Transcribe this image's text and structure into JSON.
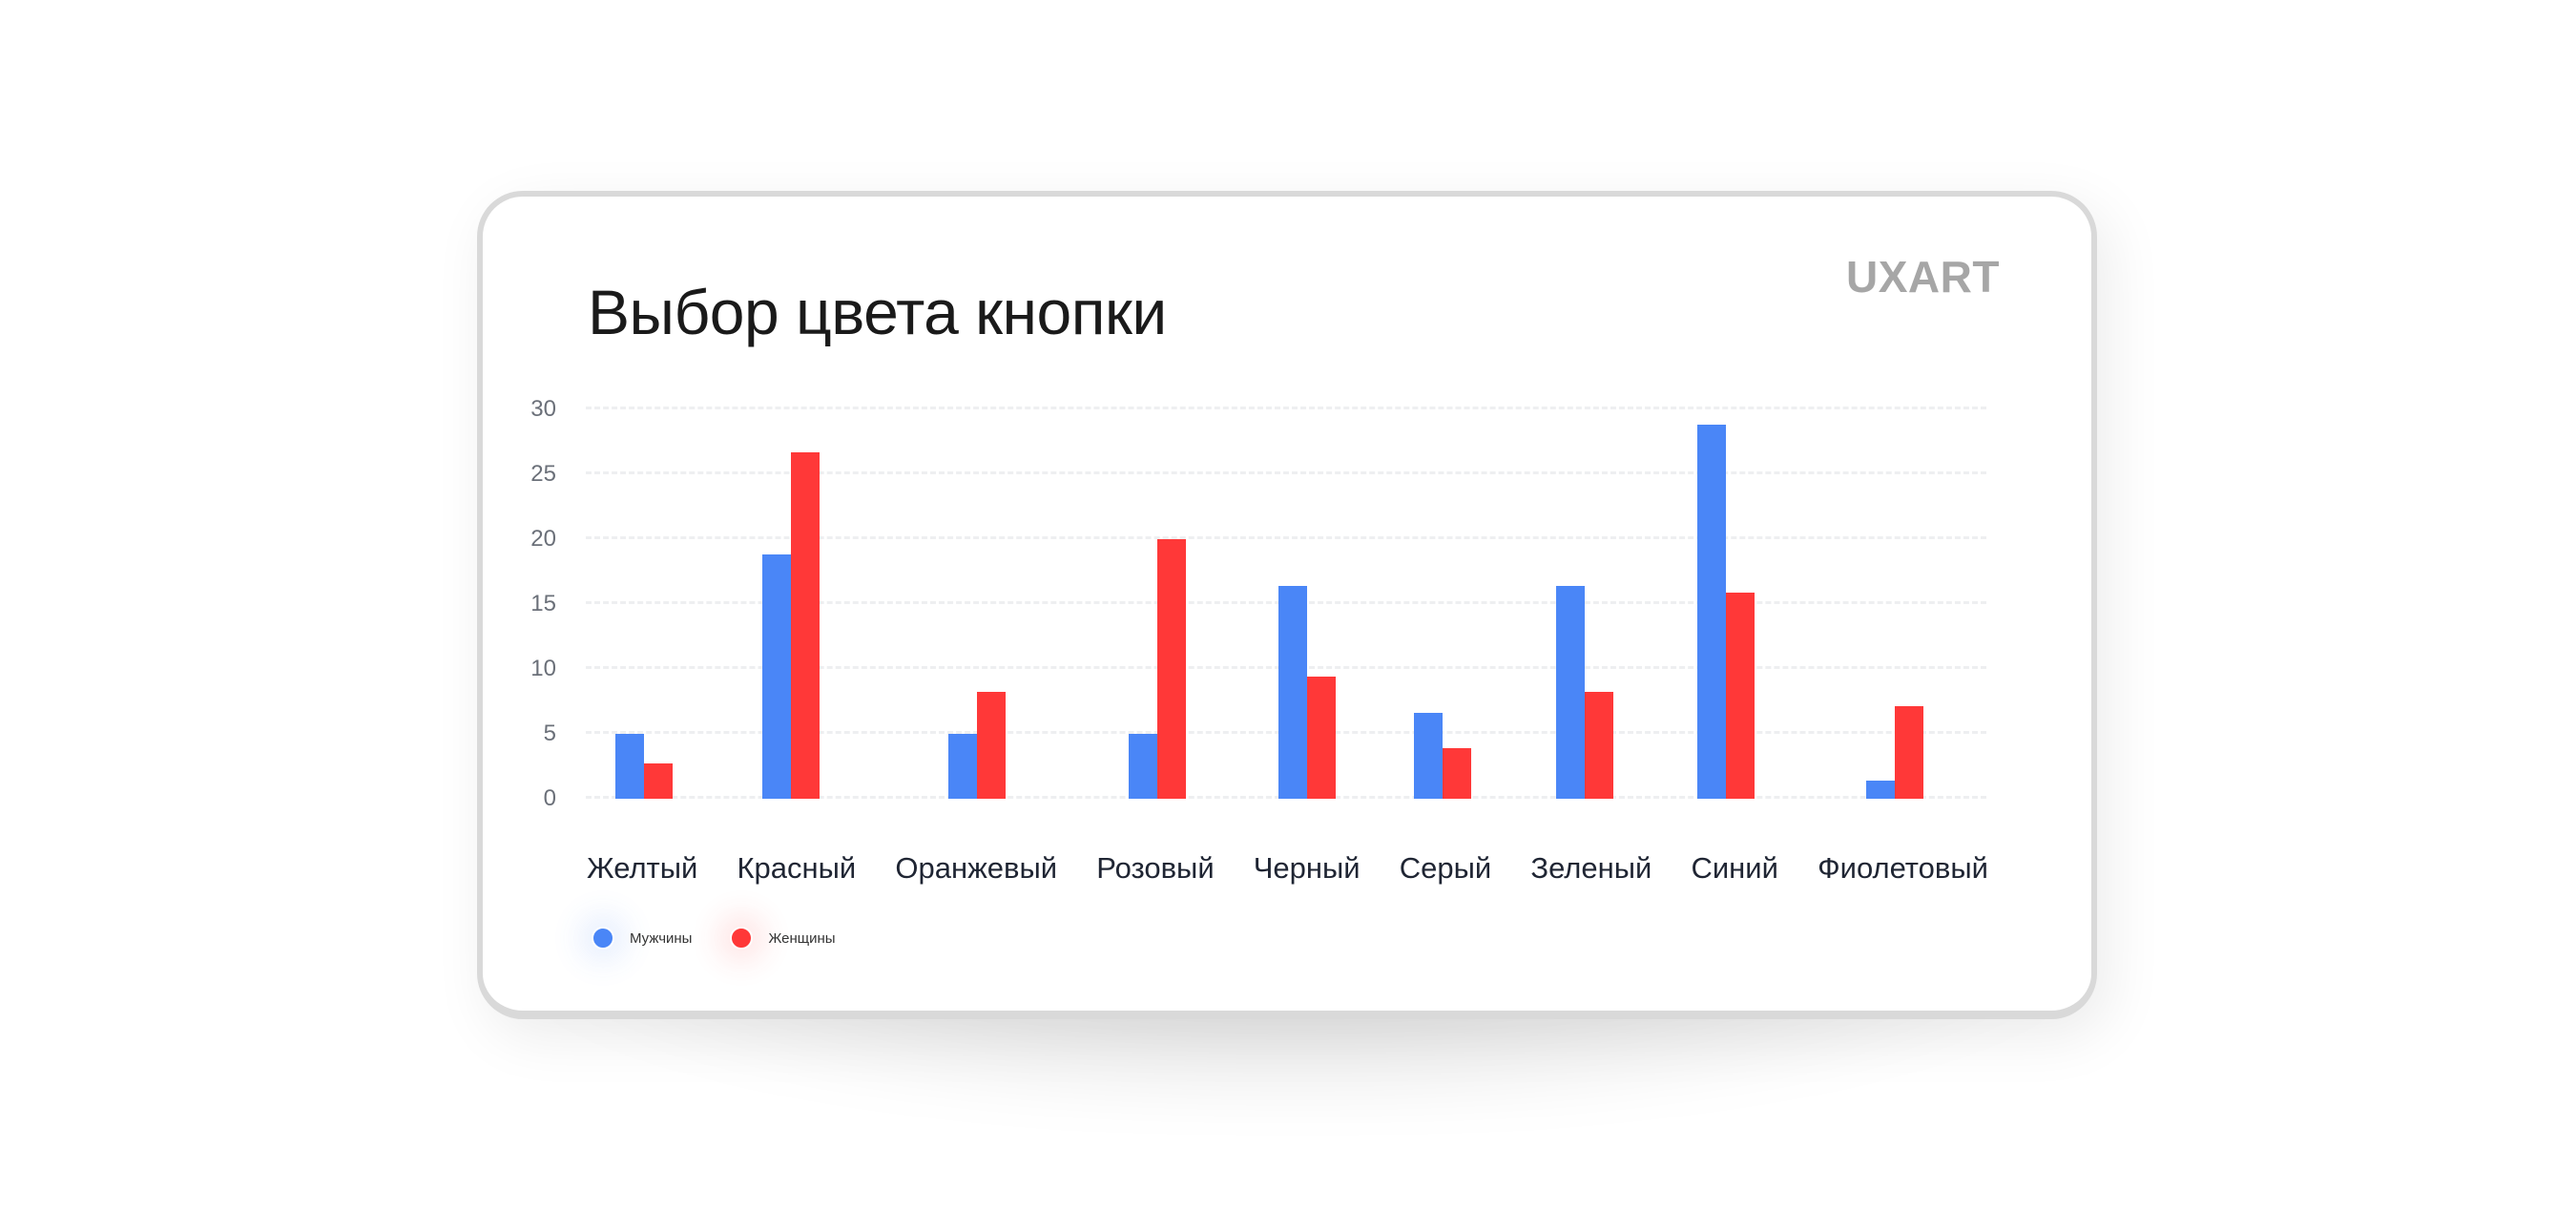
{
  "card": {
    "title": "Выбор цвета кнопки",
    "brand": "UXART"
  },
  "colors": {
    "men": "#4a86f7",
    "women": "#ff3838"
  },
  "legend": [
    {
      "label": "Мужчины",
      "color": "#4a86f7"
    },
    {
      "label": "Женщины",
      "color": "#ff3838"
    }
  ],
  "y_ticks": [
    "30",
    "25",
    "20",
    "15",
    "10",
    "5",
    "0"
  ],
  "categories": [
    "Желтый",
    "Красный",
    "Оранжевый",
    "Розовый",
    "Черный",
    "Серый",
    "Зеленый",
    "Синий",
    "Фиолетовый"
  ],
  "chart_data": {
    "type": "bar",
    "title": "Выбор цвета кнопки",
    "xlabel": "",
    "ylabel": "",
    "categories": [
      "Желтый",
      "Красный",
      "Оранжевый",
      "Розовый",
      "Черный",
      "Серый",
      "Зеленый",
      "Синий",
      "Фиолетовый"
    ],
    "series": [
      {
        "name": "Мужчины",
        "color": "#4a86f7",
        "values": [
          5,
          18.8,
          5,
          5,
          16.4,
          6.6,
          16.4,
          28.8,
          1.4
        ]
      },
      {
        "name": "Женщины",
        "color": "#ff3838",
        "values": [
          2.7,
          26.7,
          8.2,
          20,
          9.4,
          3.9,
          8.2,
          15.9,
          7.1
        ]
      }
    ],
    "ylim": [
      0,
      30
    ],
    "yticks": [
      0,
      5,
      10,
      15,
      20,
      25,
      30
    ],
    "grid": true,
    "grid_style": "dashed",
    "legend_position": "bottom-left"
  }
}
